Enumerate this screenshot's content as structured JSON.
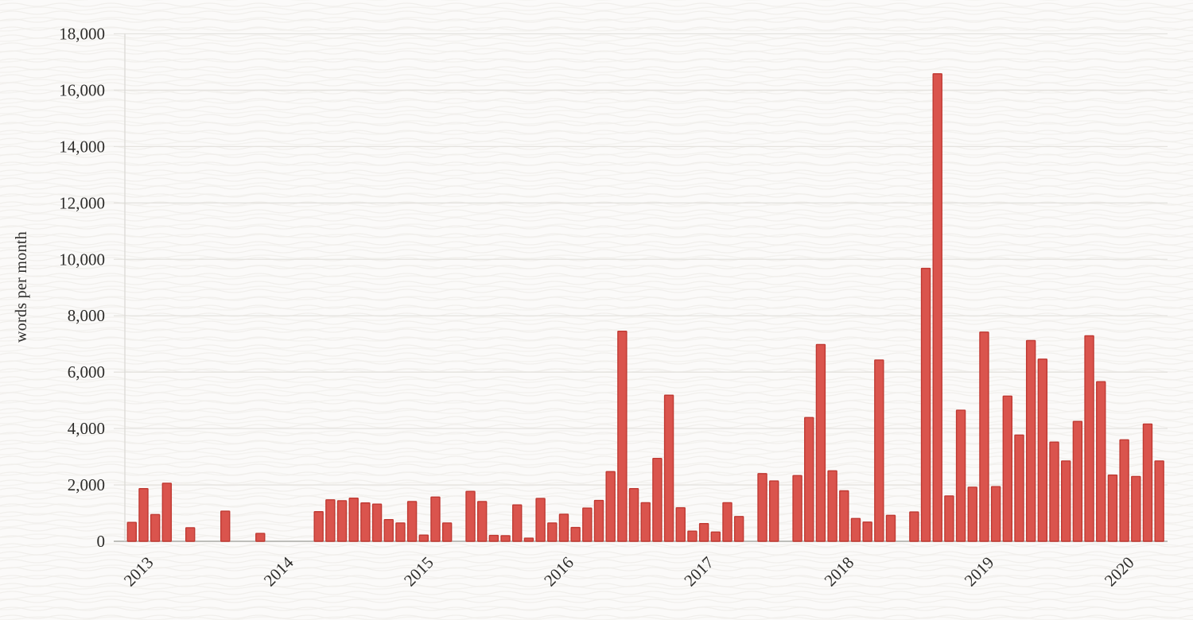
{
  "chart_data": {
    "type": "bar",
    "title": "",
    "xlabel": "",
    "ylabel": "words per month",
    "x_unit": "month",
    "start_month": "2012-11",
    "end_month": "2020-03",
    "months": [
      "2012-11",
      "2012-12",
      "2013-01",
      "2013-02",
      "2013-03",
      "2013-04",
      "2013-05",
      "2013-06",
      "2013-07",
      "2013-08",
      "2013-09",
      "2013-10",
      "2013-11",
      "2013-12",
      "2014-01",
      "2014-02",
      "2014-03",
      "2014-04",
      "2014-05",
      "2014-06",
      "2014-07",
      "2014-08",
      "2014-09",
      "2014-10",
      "2014-11",
      "2014-12",
      "2015-01",
      "2015-02",
      "2015-03",
      "2015-04",
      "2015-05",
      "2015-06",
      "2015-07",
      "2015-08",
      "2015-09",
      "2015-10",
      "2015-11",
      "2015-12",
      "2016-01",
      "2016-02",
      "2016-03",
      "2016-04",
      "2016-05",
      "2016-06",
      "2016-07",
      "2016-08",
      "2016-09",
      "2016-10",
      "2016-11",
      "2016-12",
      "2017-01",
      "2017-02",
      "2017-03",
      "2017-04",
      "2017-05",
      "2017-06",
      "2017-07",
      "2017-08",
      "2017-09",
      "2017-10",
      "2017-11",
      "2017-12",
      "2018-01",
      "2018-02",
      "2018-03",
      "2018-04",
      "2018-05",
      "2018-06",
      "2018-07",
      "2018-08",
      "2018-09",
      "2018-10",
      "2018-11",
      "2018-12",
      "2019-01",
      "2019-02",
      "2019-03",
      "2019-04",
      "2019-05",
      "2019-06",
      "2019-07",
      "2019-08",
      "2019-09",
      "2019-10",
      "2019-11",
      "2019-12",
      "2020-01",
      "2020-02",
      "2020-03"
    ],
    "values": [
      670,
      1870,
      950,
      2060,
      0,
      480,
      0,
      0,
      1070,
      0,
      0,
      280,
      0,
      0,
      0,
      0,
      1050,
      1470,
      1440,
      1530,
      1360,
      1320,
      770,
      650,
      1410,
      220,
      1570,
      650,
      0,
      1770,
      1410,
      210,
      200,
      1290,
      110,
      1520,
      650,
      960,
      490,
      1180,
      1450,
      2470,
      7450,
      1870,
      1370,
      2940,
      5180,
      1190,
      360,
      630,
      330,
      1370,
      880,
      0,
      2400,
      2140,
      0,
      2330,
      4390,
      6980,
      2500,
      1790,
      810,
      680,
      6430,
      920,
      0,
      1040,
      9680,
      16580,
      1610,
      4650,
      1920,
      7420,
      1940,
      5150,
      3770,
      7120,
      6460,
      3520,
      2850,
      4250,
      7290,
      5660,
      2350,
      3600,
      2300,
      4160,
      2850
    ],
    "x_tick_labels": [
      "2013",
      "2014",
      "2015",
      "2016",
      "2017",
      "2018",
      "2019",
      "2020"
    ],
    "y_ticks": [
      {
        "value": 0,
        "label": "0"
      },
      {
        "value": 2000,
        "label": "2,000"
      },
      {
        "value": 4000,
        "label": "4,000"
      },
      {
        "value": 6000,
        "label": "6,000"
      },
      {
        "value": 8000,
        "label": "8,000"
      },
      {
        "value": 10000,
        "label": "10,000"
      },
      {
        "value": 12000,
        "label": "12,000"
      },
      {
        "value": 14000,
        "label": "14,000"
      },
      {
        "value": 16000,
        "label": "16,000"
      },
      {
        "value": 18000,
        "label": "18,000"
      }
    ],
    "ylim": [
      0,
      18000
    ],
    "grid": "horizontal",
    "legend": "none",
    "colors": {
      "bar_fill": "#da544d",
      "bar_stroke": "#c03932",
      "grid": "#e5e3df",
      "axis_line": "#aaa9a6",
      "y_axis_line": "#dbd9d5",
      "text": "#2d2c2a",
      "background": "#fbfaf9",
      "texture_wave": "#eeece8"
    }
  }
}
